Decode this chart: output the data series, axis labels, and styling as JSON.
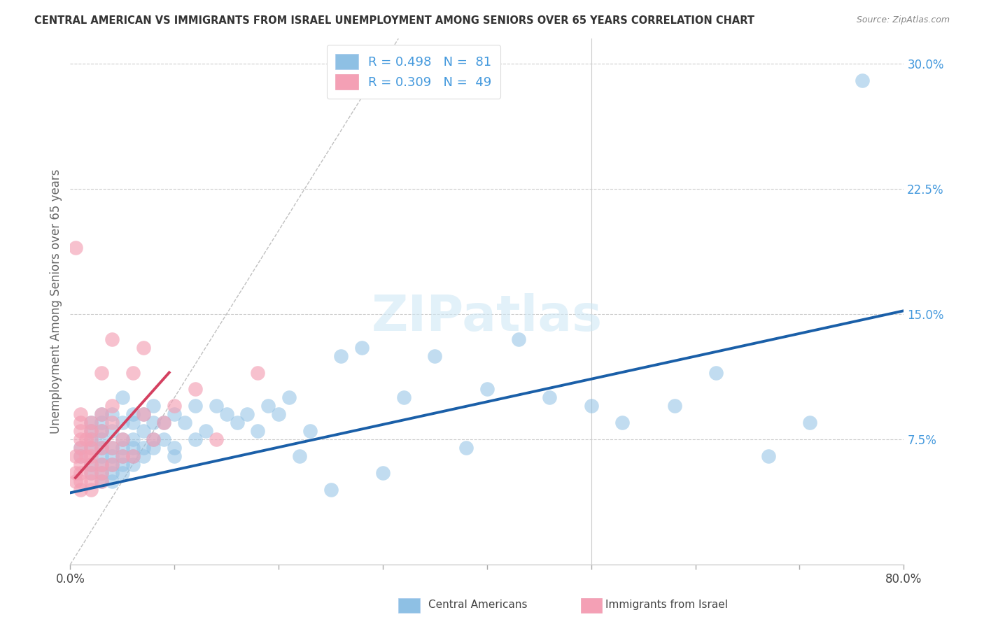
{
  "title": "CENTRAL AMERICAN VS IMMIGRANTS FROM ISRAEL UNEMPLOYMENT AMONG SENIORS OVER 65 YEARS CORRELATION CHART",
  "source": "Source: ZipAtlas.com",
  "ylabel": "Unemployment Among Seniors over 65 years",
  "xmin": 0.0,
  "xmax": 0.8,
  "ymin": 0.0,
  "ymax": 0.315,
  "yticks": [
    0.075,
    0.15,
    0.225,
    0.3
  ],
  "ytick_labels": [
    "7.5%",
    "15.0%",
    "22.5%",
    "30.0%"
  ],
  "blue_R": 0.498,
  "blue_N": 81,
  "pink_R": 0.309,
  "pink_N": 49,
  "blue_color": "#8ec0e4",
  "pink_color": "#f4a0b5",
  "blue_line_color": "#1a5fa8",
  "pink_line_color": "#d44060",
  "legend_label_blue": "Central Americans",
  "legend_label_pink": "Immigrants from Israel",
  "blue_scatter_x": [
    0.01,
    0.01,
    0.02,
    0.02,
    0.02,
    0.02,
    0.02,
    0.02,
    0.03,
    0.03,
    0.03,
    0.03,
    0.03,
    0.03,
    0.03,
    0.03,
    0.03,
    0.04,
    0.04,
    0.04,
    0.04,
    0.04,
    0.04,
    0.04,
    0.05,
    0.05,
    0.05,
    0.05,
    0.05,
    0.05,
    0.05,
    0.06,
    0.06,
    0.06,
    0.06,
    0.06,
    0.06,
    0.07,
    0.07,
    0.07,
    0.07,
    0.08,
    0.08,
    0.08,
    0.08,
    0.09,
    0.09,
    0.1,
    0.1,
    0.1,
    0.11,
    0.12,
    0.12,
    0.13,
    0.14,
    0.15,
    0.16,
    0.17,
    0.18,
    0.19,
    0.2,
    0.21,
    0.22,
    0.23,
    0.25,
    0.26,
    0.28,
    0.3,
    0.32,
    0.35,
    0.38,
    0.4,
    0.43,
    0.46,
    0.5,
    0.53,
    0.58,
    0.62,
    0.67,
    0.71,
    0.76
  ],
  "blue_scatter_y": [
    0.065,
    0.07,
    0.055,
    0.06,
    0.07,
    0.075,
    0.08,
    0.085,
    0.05,
    0.055,
    0.06,
    0.065,
    0.07,
    0.075,
    0.08,
    0.085,
    0.09,
    0.05,
    0.055,
    0.06,
    0.065,
    0.07,
    0.08,
    0.09,
    0.055,
    0.06,
    0.065,
    0.07,
    0.075,
    0.085,
    0.1,
    0.06,
    0.065,
    0.07,
    0.075,
    0.085,
    0.09,
    0.065,
    0.07,
    0.08,
    0.09,
    0.07,
    0.075,
    0.085,
    0.095,
    0.075,
    0.085,
    0.065,
    0.07,
    0.09,
    0.085,
    0.075,
    0.095,
    0.08,
    0.095,
    0.09,
    0.085,
    0.09,
    0.08,
    0.095,
    0.09,
    0.1,
    0.065,
    0.08,
    0.045,
    0.125,
    0.13,
    0.055,
    0.1,
    0.125,
    0.07,
    0.105,
    0.135,
    0.1,
    0.095,
    0.085,
    0.095,
    0.115,
    0.065,
    0.085,
    0.29
  ],
  "pink_scatter_x": [
    0.005,
    0.005,
    0.005,
    0.005,
    0.01,
    0.01,
    0.01,
    0.01,
    0.01,
    0.01,
    0.01,
    0.01,
    0.01,
    0.01,
    0.015,
    0.015,
    0.02,
    0.02,
    0.02,
    0.02,
    0.02,
    0.02,
    0.02,
    0.02,
    0.02,
    0.03,
    0.03,
    0.03,
    0.03,
    0.03,
    0.03,
    0.03,
    0.04,
    0.04,
    0.04,
    0.04,
    0.04,
    0.05,
    0.05,
    0.06,
    0.06,
    0.07,
    0.07,
    0.08,
    0.09,
    0.1,
    0.12,
    0.14,
    0.18
  ],
  "pink_scatter_y": [
    0.05,
    0.055,
    0.065,
    0.19,
    0.045,
    0.05,
    0.055,
    0.06,
    0.065,
    0.07,
    0.075,
    0.08,
    0.085,
    0.09,
    0.065,
    0.075,
    0.045,
    0.05,
    0.055,
    0.06,
    0.065,
    0.07,
    0.075,
    0.08,
    0.085,
    0.05,
    0.055,
    0.06,
    0.07,
    0.08,
    0.09,
    0.115,
    0.06,
    0.07,
    0.085,
    0.095,
    0.135,
    0.065,
    0.075,
    0.065,
    0.115,
    0.09,
    0.13,
    0.075,
    0.085,
    0.095,
    0.105,
    0.075,
    0.115
  ],
  "blue_trend_x": [
    0.0,
    0.8
  ],
  "blue_trend_y": [
    0.043,
    0.152
  ],
  "pink_trend_x": [
    0.005,
    0.095
  ],
  "pink_trend_y": [
    0.052,
    0.115
  ],
  "ref_line_x": [
    0.0,
    0.315
  ],
  "ref_line_y": [
    0.0,
    0.315
  ],
  "background_color": "#ffffff",
  "grid_color": "#cccccc",
  "title_color": "#333333",
  "axis_label_color": "#666666",
  "right_tick_color": "#4499dd"
}
